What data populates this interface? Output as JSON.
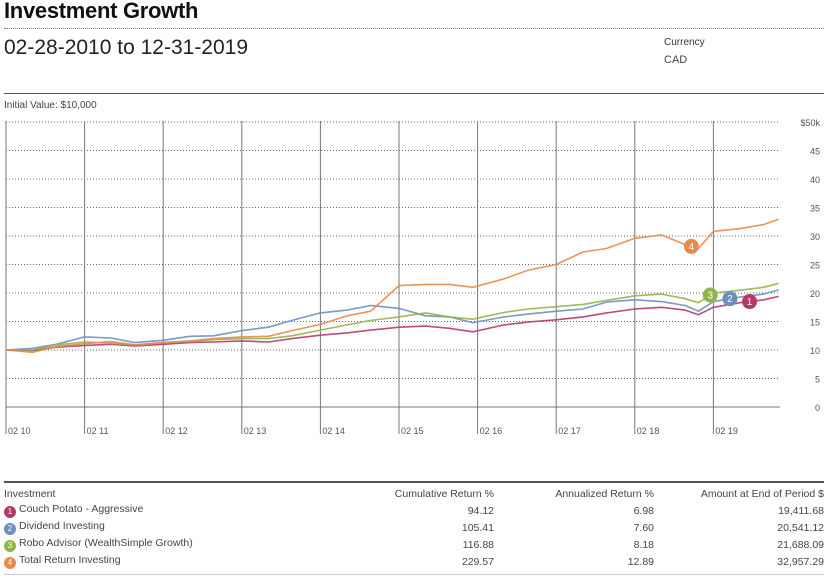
{
  "header": {
    "title": "Investment Growth",
    "date_range": "02-28-2010  to  12-31-2019",
    "currency_label": "Currency",
    "currency_value": "CAD",
    "initial_value": "Initial Value: $10,000"
  },
  "chart_data": {
    "type": "line",
    "title": "Investment Growth",
    "xlabel": "",
    "ylabel": "",
    "y_unit": "$ thousands",
    "ylim": [
      0,
      50
    ],
    "y_ticks": [
      0,
      5,
      10,
      15,
      20,
      25,
      30,
      35,
      40,
      45,
      50
    ],
    "y_tick_labels": [
      "0",
      "5",
      "10",
      "15",
      "20",
      "25",
      "30",
      "35",
      "40",
      "45",
      "$50k"
    ],
    "xlim": [
      2010.16,
      2020.2
    ],
    "x_ticks": [
      2010.16,
      2011.16,
      2012.16,
      2013.16,
      2014.16,
      2015.16,
      2016.16,
      2017.16,
      2018.16,
      2019.16
    ],
    "x_tick_labels": [
      "02 10",
      "02 11",
      "02 12",
      "02 13",
      "02 14",
      "02 15",
      "02 16",
      "02 17",
      "02 18",
      "02 19"
    ],
    "grid": "horizontal dotted, vertical solid at ticks",
    "legend": "table-below",
    "x": [
      2010.16,
      2010.5,
      2010.8,
      2011.16,
      2011.5,
      2011.8,
      2012.16,
      2012.5,
      2012.8,
      2013.16,
      2013.5,
      2013.8,
      2014.16,
      2014.5,
      2014.8,
      2015.16,
      2015.5,
      2015.8,
      2016.1,
      2016.5,
      2016.8,
      2017.16,
      2017.5,
      2017.8,
      2018.16,
      2018.5,
      2018.8,
      2018.97,
      2019.16,
      2019.5,
      2019.8,
      2019.99
    ],
    "series": [
      {
        "name": "Couch Potato - Aggressive",
        "marker": "1",
        "color": "#B5386B",
        "values": [
          10.0,
          9.9,
          10.5,
          10.8,
          11.0,
          10.7,
          11.0,
          11.3,
          11.4,
          11.6,
          11.4,
          12.0,
          12.6,
          13.0,
          13.5,
          14.0,
          14.2,
          13.8,
          13.2,
          14.4,
          14.9,
          15.3,
          15.8,
          16.5,
          17.2,
          17.5,
          17.0,
          16.2,
          17.5,
          18.3,
          18.8,
          19.41
        ]
      },
      {
        "name": "Dividend Investing",
        "marker": "2",
        "color": "#6A8FBF",
        "values": [
          10.0,
          10.3,
          11.0,
          12.3,
          12.1,
          11.3,
          11.7,
          12.4,
          12.5,
          13.4,
          14.0,
          15.2,
          16.5,
          17.0,
          17.8,
          17.3,
          16.0,
          15.8,
          14.8,
          15.8,
          16.3,
          16.8,
          17.2,
          18.4,
          18.8,
          18.5,
          17.8,
          16.8,
          18.5,
          19.3,
          19.8,
          20.54
        ]
      },
      {
        "name": "Robo Advisor (WealthSimple Growth)",
        "marker": "3",
        "color": "#93B24A",
        "values": [
          10.0,
          10.0,
          10.9,
          11.4,
          11.2,
          10.9,
          11.3,
          11.5,
          11.8,
          12.0,
          12.0,
          12.5,
          13.5,
          14.4,
          15.2,
          15.8,
          16.5,
          15.8,
          15.4,
          16.6,
          17.2,
          17.6,
          18.0,
          18.7,
          19.5,
          19.8,
          19.0,
          18.3,
          20.0,
          20.5,
          21.0,
          21.69
        ]
      },
      {
        "name": "Total Return Investing",
        "marker": "4",
        "color": "#E88A4A",
        "values": [
          10.0,
          9.6,
          10.6,
          11.1,
          11.5,
          10.9,
          11.3,
          11.6,
          12.0,
          12.3,
          12.4,
          13.4,
          14.5,
          16.0,
          16.8,
          21.3,
          21.5,
          21.5,
          21.0,
          22.5,
          24.0,
          25.0,
          27.2,
          27.8,
          29.6,
          30.2,
          28.5,
          27.8,
          30.8,
          31.3,
          32.0,
          32.96
        ]
      }
    ],
    "marker_positions": {
      "1": 2019.62,
      "2": 2019.37,
      "3": 2019.12,
      "4": 2018.88
    }
  },
  "table": {
    "headers": [
      "Investment",
      "Cumulative Return %",
      "Annualized Return %",
      "Amount at End of Period $"
    ],
    "rows": [
      {
        "marker": "1",
        "color": "#B5386B",
        "name": "Couch Potato - Aggressive",
        "cumulative": "94.12",
        "annualized": "6.98",
        "end_amount": "19,411.68"
      },
      {
        "marker": "2",
        "color": "#6A8FBF",
        "name": "Dividend Investing",
        "cumulative": "105.41",
        "annualized": "7.60",
        "end_amount": "20,541.12"
      },
      {
        "marker": "3",
        "color": "#93B24A",
        "name": "Robo Advisor (WealthSimple Growth)",
        "cumulative": "116.88",
        "annualized": "8.18",
        "end_amount": "21,688.09"
      },
      {
        "marker": "4",
        "color": "#E88A4A",
        "name": "Total Return Investing",
        "cumulative": "229.57",
        "annualized": "12.89",
        "end_amount": "32,957.29"
      }
    ]
  }
}
